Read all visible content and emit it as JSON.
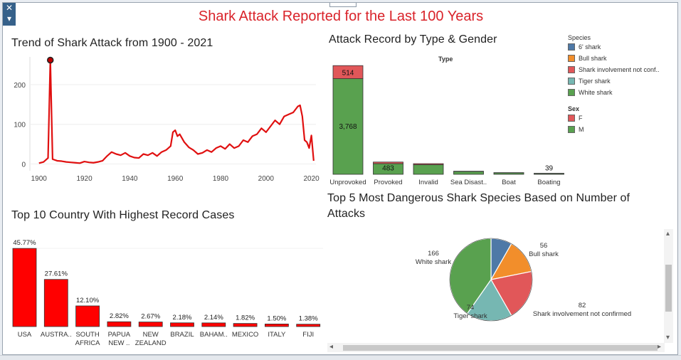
{
  "dashboard": {
    "title": "Shark Attack Reported for the Last 100 Years"
  },
  "colors": {
    "accent_red": "#e01010",
    "green": "#59a14f",
    "red_f": "#e15759",
    "blue": "#4e79a7",
    "orange": "#f28e2b",
    "teal": "#76b7b2"
  },
  "icons": {
    "close": "close-icon",
    "dropdown": "chevron-down-icon"
  },
  "trend": {
    "title": "Trend of Shark Attack from 1900 - 2021",
    "chart_data": {
      "type": "line",
      "title": "Trend of Shark Attack from 1900 - 2021",
      "xlabel": "",
      "ylabel": "",
      "xlim": [
        1896,
        2022
      ],
      "ylim": [
        -10,
        270
      ],
      "x_ticks": [
        1900,
        1920,
        1940,
        1960,
        1980,
        2000,
        2020
      ],
      "y_ticks": [
        0,
        100,
        200
      ],
      "highlight": {
        "x": 1905,
        "y": 262
      },
      "x": [
        1900,
        1902,
        1904,
        1905,
        1906,
        1908,
        1910,
        1912,
        1914,
        1916,
        1918,
        1920,
        1922,
        1924,
        1926,
        1928,
        1930,
        1932,
        1934,
        1936,
        1938,
        1940,
        1942,
        1944,
        1946,
        1948,
        1950,
        1952,
        1954,
        1956,
        1958,
        1959,
        1960,
        1961,
        1962,
        1964,
        1966,
        1968,
        1970,
        1972,
        1974,
        1976,
        1978,
        1980,
        1982,
        1984,
        1986,
        1988,
        1990,
        1992,
        1994,
        1996,
        1998,
        2000,
        2002,
        2004,
        2006,
        2008,
        2010,
        2012,
        2014,
        2015,
        2016,
        2017,
        2018,
        2019,
        2020,
        2021
      ],
      "y": [
        2,
        5,
        15,
        262,
        12,
        8,
        7,
        5,
        4,
        3,
        2,
        6,
        4,
        3,
        5,
        8,
        20,
        30,
        25,
        22,
        28,
        20,
        16,
        15,
        25,
        22,
        28,
        20,
        30,
        35,
        45,
        80,
        85,
        70,
        75,
        55,
        42,
        35,
        25,
        28,
        35,
        30,
        40,
        45,
        38,
        50,
        40,
        45,
        60,
        55,
        70,
        75,
        90,
        80,
        95,
        110,
        100,
        120,
        125,
        130,
        145,
        148,
        120,
        60,
        55,
        40,
        72,
        8
      ]
    }
  },
  "type_gender": {
    "title": "Attack Record by Type & Gender",
    "header": "Type",
    "chart_data": {
      "type": "bar",
      "stacked": true,
      "categories": [
        "Unprovoked",
        "Provoked",
        "Invalid",
        "Sea Disast..",
        "Boat",
        "Boating"
      ],
      "series": [
        {
          "name": "M",
          "values": [
            3768,
            420,
            380,
            110,
            60,
            33
          ]
        },
        {
          "name": "F",
          "values": [
            514,
            63,
            40,
            12,
            6,
            6
          ]
        }
      ],
      "data_labels": [
        {
          "category": "Unprovoked",
          "series": "M",
          "text": "3,768"
        },
        {
          "category": "Unprovoked",
          "series": "F",
          "text": "514"
        },
        {
          "category": "Provoked",
          "series": "total",
          "text": "483"
        },
        {
          "category": "Boating",
          "series": "total",
          "text": "39"
        }
      ],
      "ylim": [
        0,
        4400
      ]
    }
  },
  "legend": {
    "species_title": "Species",
    "species": [
      {
        "label": "6' shark",
        "color": "#4e79a7"
      },
      {
        "label": "Bull shark",
        "color": "#f28e2b"
      },
      {
        "label": "Shark involvement not conf..",
        "color": "#e15759"
      },
      {
        "label": "Tiger shark",
        "color": "#76b7b2"
      },
      {
        "label": "White shark",
        "color": "#59a14f"
      }
    ],
    "sex_title": "Sex",
    "sex": [
      {
        "label": "F",
        "color": "#e15759"
      },
      {
        "label": "M",
        "color": "#59a14f"
      }
    ]
  },
  "countries": {
    "title": "Top 10 Country With Highest Record Cases",
    "chart_data": {
      "type": "bar",
      "categories": [
        "USA",
        "AUSTRA..",
        "SOUTH\nAFRICA",
        "PAPUA\nNEW ..",
        "NEW\nZEALAND",
        "BRAZIL",
        "BAHAM..",
        "MEXICO",
        "ITALY",
        "FIJI"
      ],
      "values": [
        45.77,
        27.61,
        12.1,
        2.82,
        2.67,
        2.18,
        2.14,
        1.82,
        1.5,
        1.38
      ],
      "value_labels": [
        "45.77%",
        "27.61%",
        "12.10%",
        "2.82%",
        "2.67%",
        "2.18%",
        "2.14%",
        "1.82%",
        "1.50%",
        "1.38%"
      ],
      "ylim": [
        0,
        50
      ]
    }
  },
  "species": {
    "title": "Top 5 Most Dangerous Shark Species Based on Number of Attacks",
    "chart_data": {
      "type": "pie",
      "categories": [
        "6' shark",
        "Bull shark",
        "Shark involvement not confirmed",
        "Tiger shark",
        "White shark"
      ],
      "values": [
        34,
        56,
        82,
        74,
        166
      ],
      "colors": [
        "#4e79a7",
        "#f28e2b",
        "#e15759",
        "#76b7b2",
        "#59a14f"
      ],
      "labels": [
        {
          "category": "Bull shark",
          "value": "56",
          "name": "Bull shark"
        },
        {
          "category": "Shark involvement not confirmed",
          "value": "82",
          "name": "Shark involvement not confirmed"
        },
        {
          "category": "Tiger shark",
          "value": "74",
          "name": "Tiger shark"
        },
        {
          "category": "White shark",
          "value": "166",
          "name": "White shark"
        }
      ]
    }
  }
}
